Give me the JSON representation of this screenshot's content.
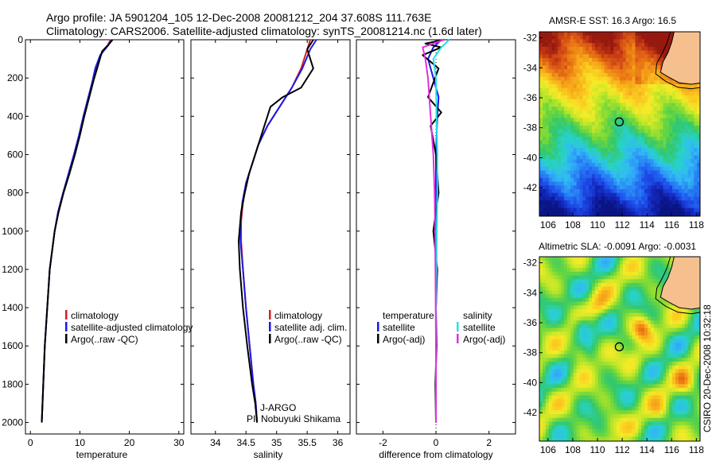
{
  "header": {
    "line1": "Argo profile: JA 5901204_105 12-Dec-2008 20081212_204 37.608S 111.763E",
    "line2": "Climatology: CARS2006. Satellite-adjusted climatology: synTS_20081214.nc (1.6d later)"
  },
  "credit": "CSIRO 20-Dec-2008 10:32:18",
  "colors": {
    "climatology": "#d42020",
    "satellite": "#1a1ae6",
    "argo": "#000000",
    "satellite_salinity": "#22e0e8",
    "argo_salinity": "#e030e0",
    "land": "#f5c08e"
  },
  "chart_data": [
    {
      "id": "temperature",
      "type": "line",
      "xlabel": "temperature",
      "ylabel": "",
      "xlim": [
        -1,
        31
      ],
      "ylim": [
        2060,
        0
      ],
      "y_reversed": true,
      "xticks": [
        0,
        10,
        20,
        30
      ],
      "yticks": [
        0,
        200,
        400,
        600,
        800,
        1000,
        1200,
        1400,
        1600,
        1800,
        2000
      ],
      "legend": {
        "position": "lower-right",
        "entries": [
          "climatology",
          "satellite-adjusted climatology",
          "Argo(..raw -QC)"
        ]
      },
      "series": [
        {
          "name": "climatology",
          "color": "#d42020",
          "x": [
            16.2,
            15.6,
            14.2,
            13.2,
            12.6,
            11.8,
            10.8,
            9.9,
            8.9,
            7.8,
            6.6,
            5.6,
            4.9,
            4.4,
            3.9,
            3.4,
            2.9,
            2.6,
            2.3
          ],
          "y": [
            0,
            30,
            80,
            150,
            220,
            300,
            400,
            500,
            600,
            700,
            800,
            900,
            1000,
            1100,
            1200,
            1400,
            1600,
            1800,
            2000
          ]
        },
        {
          "name": "satellite-adjusted climatology",
          "color": "#1a1ae6",
          "x": [
            16.4,
            15.7,
            14.1,
            13.1,
            12.5,
            11.7,
            10.7,
            9.8,
            8.8,
            7.7,
            6.6,
            5.6,
            4.9,
            4.4,
            3.9,
            3.4,
            2.9,
            2.6,
            2.3
          ],
          "y": [
            0,
            30,
            80,
            150,
            220,
            300,
            400,
            500,
            600,
            700,
            800,
            900,
            1000,
            1100,
            1200,
            1400,
            1600,
            1800,
            2000
          ]
        },
        {
          "name": "Argo(..raw -QC)",
          "color": "#000000",
          "x": [
            16.6,
            16.0,
            14.5,
            13.6,
            12.8,
            11.9,
            10.9,
            10.0,
            9.0,
            7.9,
            6.7,
            5.7,
            4.9,
            4.4,
            3.9,
            3.4,
            2.9,
            2.6,
            2.3
          ],
          "y": [
            0,
            20,
            60,
            140,
            210,
            300,
            400,
            500,
            600,
            700,
            800,
            900,
            1000,
            1100,
            1200,
            1400,
            1600,
            1800,
            2000
          ]
        }
      ]
    },
    {
      "id": "salinity",
      "type": "line",
      "xlabel": "salinity",
      "ylabel": "",
      "xlim": [
        33.6,
        36.2
      ],
      "ylim": [
        2060,
        0
      ],
      "y_reversed": true,
      "xticks": [
        34,
        34.5,
        35,
        35.5,
        36
      ],
      "legend": {
        "position": "lower-right",
        "entries": [
          "climatology",
          "satellite adj. clim.",
          "Argo(..raw -QC)"
        ]
      },
      "annotations": [
        "J-ARGO",
        "PI: Nobuyuki Shikama"
      ],
      "series": [
        {
          "name": "climatology",
          "color": "#d42020",
          "x": [
            35.55,
            35.5,
            35.4,
            35.25,
            35.05,
            34.85,
            34.7,
            34.6,
            34.5,
            34.45,
            34.42,
            34.42,
            34.45,
            34.5,
            34.56,
            34.62,
            34.66,
            34.68
          ],
          "y": [
            0,
            50,
            150,
            250,
            350,
            450,
            550,
            650,
            750,
            850,
            950,
            1050,
            1200,
            1400,
            1600,
            1800,
            1900,
            2000
          ]
        },
        {
          "name": "satellite adj. clim.",
          "color": "#1a1ae6",
          "x": [
            35.65,
            35.55,
            35.42,
            35.25,
            35.05,
            34.85,
            34.7,
            34.6,
            34.5,
            34.44,
            34.41,
            34.41,
            34.45,
            34.5,
            34.56,
            34.62,
            34.66,
            34.68
          ],
          "y": [
            0,
            50,
            150,
            250,
            350,
            450,
            550,
            650,
            750,
            850,
            950,
            1050,
            1200,
            1400,
            1600,
            1800,
            1900,
            2000
          ]
        },
        {
          "name": "Argo(..raw -QC)",
          "color": "#000000",
          "x": [
            35.6,
            35.5,
            35.6,
            35.4,
            35.1,
            34.9,
            34.8,
            34.65,
            34.55,
            34.48,
            34.42,
            34.38,
            34.4,
            34.45,
            34.52,
            34.6,
            34.65,
            34.68
          ],
          "y": [
            0,
            50,
            150,
            250,
            300,
            350,
            450,
            600,
            700,
            800,
            900,
            1050,
            1200,
            1400,
            1600,
            1800,
            1900,
            2000
          ]
        }
      ]
    },
    {
      "id": "difference",
      "type": "line",
      "xlabel": "difference from climatology",
      "ylabel": "",
      "xlim": [
        -3.0,
        3.0
      ],
      "ylim": [
        2060,
        0
      ],
      "y_reversed": true,
      "xticks": [
        -2,
        0,
        2
      ],
      "legend": {
        "position": "lower-right",
        "temperature_heading": "temperature",
        "salinity_heading": "salinity",
        "temperature_entries": [
          "satellite",
          "Argo(-adj)"
        ],
        "salinity_entries": [
          "satellite",
          "Argo(-adj)"
        ]
      },
      "series": [
        {
          "name": "temperature satellite",
          "color": "#1a1ae6",
          "x": [
            0.2,
            -0.1,
            -0.3,
            -0.1,
            0.1,
            0.05,
            0.0,
            0.0,
            0.0,
            0.0,
            0.0,
            0.0,
            0.0,
            0.0
          ],
          "y": [
            0,
            40,
            100,
            200,
            300,
            400,
            600,
            800,
            1000,
            1200,
            1400,
            1600,
            1800,
            2000
          ]
        },
        {
          "name": "temperature Argo(-adj)",
          "color": "#000000",
          "x": [
            0.3,
            -0.4,
            0.2,
            -0.5,
            0.1,
            -0.3,
            0.2,
            -0.2,
            0.0,
            0.1,
            -0.1,
            0.05,
            0.0,
            0.02,
            -0.02,
            0.0
          ],
          "y": [
            0,
            20,
            40,
            80,
            150,
            300,
            380,
            450,
            600,
            800,
            1000,
            1200,
            1400,
            1600,
            1800,
            2000
          ]
        },
        {
          "name": "salinity satellite",
          "color": "#22e0e8",
          "x": [
            0.5,
            0.2,
            -0.1,
            0.0,
            0.02,
            0.05,
            0.05,
            0.03,
            0.02,
            0.0,
            0.0,
            0.0,
            0.0
          ],
          "y": [
            0,
            40,
            100,
            200,
            400,
            600,
            800,
            1000,
            1200,
            1400,
            1600,
            1800,
            2000
          ]
        },
        {
          "name": "salinity Argo(-adj)",
          "color": "#e030e0",
          "x": [
            0.3,
            -0.5,
            -0.4,
            -0.3,
            -0.2,
            -0.1,
            -0.05,
            -0.03,
            -0.02,
            -0.01,
            0.0,
            0.0,
            0.0
          ],
          "y": [
            0,
            40,
            100,
            200,
            400,
            600,
            800,
            1000,
            1200,
            1400,
            1600,
            1800,
            2000
          ]
        }
      ]
    },
    {
      "id": "sst_map",
      "type": "heatmap",
      "title": "AMSR-E SST: 16.3 Argo: 16.5",
      "xlim": [
        105.3,
        118.3
      ],
      "ylim": [
        -43.9,
        -31.6
      ],
      "xticks": [
        106,
        108,
        110,
        112,
        114,
        116,
        118
      ],
      "yticks": [
        -32,
        -34,
        -36,
        -38,
        -40,
        -42
      ],
      "float_position": {
        "lon": 111.763,
        "lat": -37.608
      }
    },
    {
      "id": "sla_map",
      "type": "heatmap",
      "title": "Altimetric SLA: -0.0091 Argo: -0.0031",
      "xlim": [
        105.3,
        118.3
      ],
      "ylim": [
        -43.9,
        -31.6
      ],
      "xticks": [
        106,
        108,
        110,
        112,
        114,
        116,
        118
      ],
      "yticks": [
        -32,
        -34,
        -36,
        -38,
        -40,
        -42
      ],
      "float_position": {
        "lon": 111.763,
        "lat": -37.608
      }
    }
  ]
}
